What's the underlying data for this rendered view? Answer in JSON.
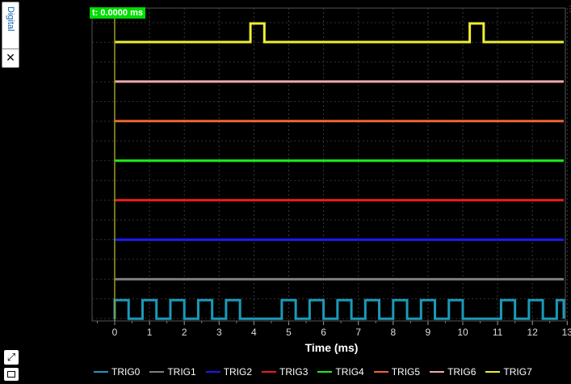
{
  "panel": {
    "tab_label": "Digital",
    "close_glyph": "✕",
    "expand_glyph": "⤢"
  },
  "cursor": {
    "label": "t: 0.0000 ms"
  },
  "axis": {
    "xlabel": "Time (ms)"
  },
  "chart_data": {
    "type": "line",
    "xlabel": "Time (ms)",
    "xlim": [
      -0.6,
      13.0
    ],
    "ticks": [
      0,
      1,
      2,
      3,
      4,
      5,
      6,
      7,
      8,
      9,
      10,
      11,
      12,
      13
    ],
    "cursor_x": 0,
    "series": [
      {
        "name": "TRIG0",
        "color": "#1a9ab8",
        "pulses": [
          [
            0.0,
            0.4
          ],
          [
            0.8,
            1.2
          ],
          [
            1.6,
            2.0
          ],
          [
            2.4,
            2.8
          ],
          [
            3.2,
            3.6
          ],
          [
            4.8,
            5.2
          ],
          [
            5.6,
            6.0
          ],
          [
            6.4,
            6.8
          ],
          [
            7.2,
            7.6
          ],
          [
            8.0,
            8.4
          ],
          [
            8.8,
            9.2
          ],
          [
            9.6,
            10.0
          ],
          [
            11.1,
            11.5
          ],
          [
            11.9,
            12.3
          ],
          [
            12.7,
            13.0
          ]
        ]
      },
      {
        "name": "TRIG1",
        "color": "#7f7f7f",
        "pulses": []
      },
      {
        "name": "TRIG2",
        "color": "#1a1aee",
        "pulses": []
      },
      {
        "name": "TRIG3",
        "color": "#ee1a1a",
        "pulses": []
      },
      {
        "name": "TRIG4",
        "color": "#1aee1a",
        "pulses": []
      },
      {
        "name": "TRIG5",
        "color": "#ee6633",
        "pulses": []
      },
      {
        "name": "TRIG6",
        "color": "#eeaaaa",
        "pulses": []
      },
      {
        "name": "TRIG7",
        "color": "#eeee33",
        "pulses": [
          [
            3.9,
            4.3
          ],
          [
            10.2,
            10.6
          ]
        ]
      }
    ]
  }
}
